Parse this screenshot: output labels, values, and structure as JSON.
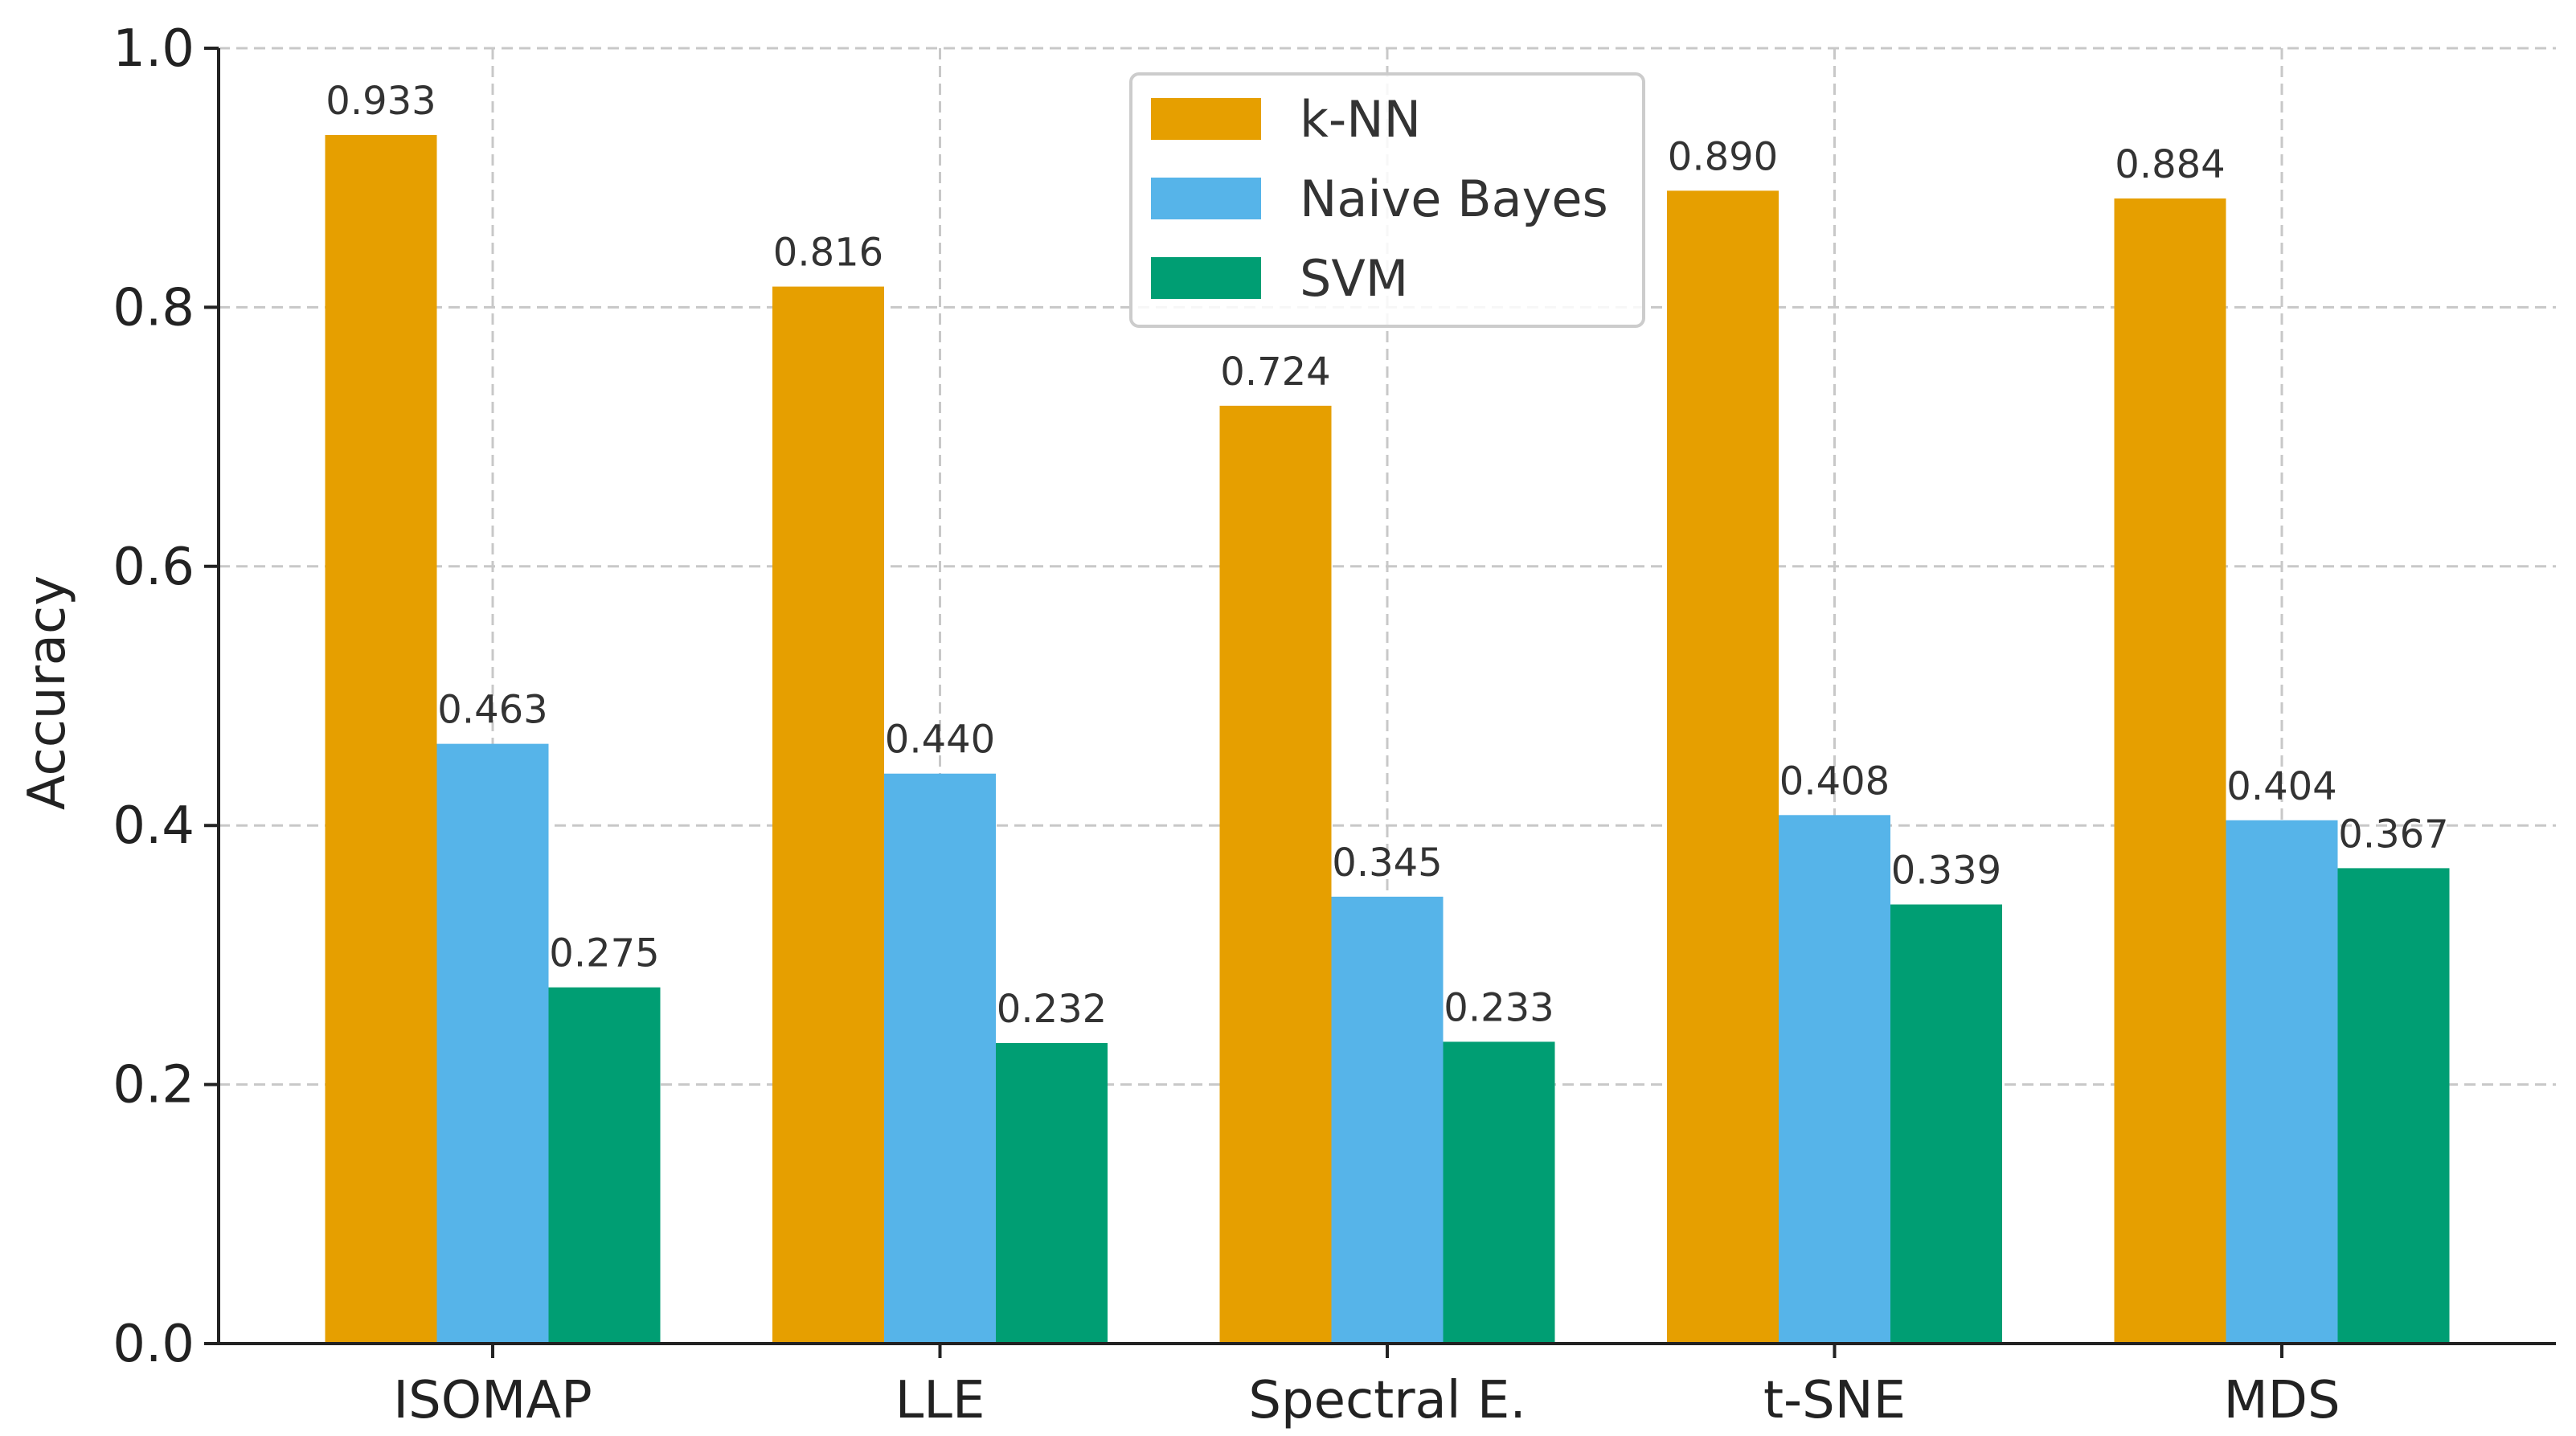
{
  "chart_data": {
    "type": "bar",
    "title": "",
    "xlabel": "",
    "ylabel": "Accuracy",
    "ylim": [
      0,
      1.0
    ],
    "yticks": [
      "0.0",
      "0.2",
      "0.4",
      "0.6",
      "0.8",
      "1.0"
    ],
    "grid": true,
    "legend_position": "top-center",
    "categories": [
      "ISOMAP",
      "LLE",
      "Spectral E.",
      "t-SNE",
      "MDS"
    ],
    "series": [
      {
        "name": "k-NN",
        "color": "#E69F00",
        "values": [
          0.933,
          0.816,
          0.724,
          0.89,
          0.884
        ],
        "labels": [
          "0.933",
          "0.816",
          "0.724",
          "0.890",
          "0.884"
        ]
      },
      {
        "name": "Naive Bayes",
        "color": "#56B4E9",
        "values": [
          0.463,
          0.44,
          0.345,
          0.408,
          0.404
        ],
        "labels": [
          "0.463",
          "0.440",
          "0.345",
          "0.408",
          "0.404"
        ]
      },
      {
        "name": "SVM",
        "color": "#009E73",
        "values": [
          0.275,
          0.232,
          0.233,
          0.339,
          0.367
        ],
        "labels": [
          "0.275",
          "0.232",
          "0.233",
          "0.339",
          "0.367"
        ]
      }
    ]
  }
}
